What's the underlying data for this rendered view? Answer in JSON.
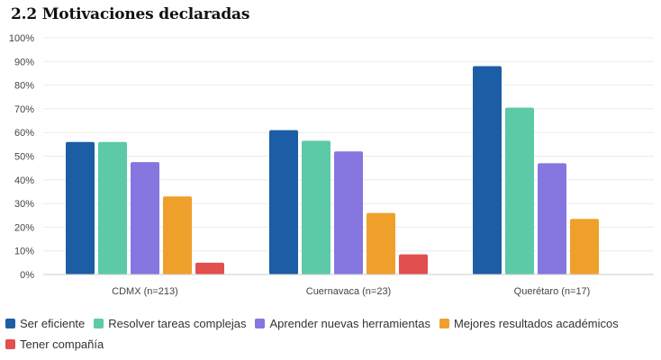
{
  "header": {
    "title": "2.2 Motivaciones declaradas"
  },
  "chart_data": {
    "type": "bar",
    "categories": [
      "CDMX (n=213)",
      "Cuernavaca (n=23)",
      "Querétaro (n=17)"
    ],
    "series": [
      {
        "name": "Ser eficiente",
        "color": "#1c5ea5",
        "values": [
          56,
          61,
          88
        ]
      },
      {
        "name": "Resolver tareas complejas",
        "color": "#5ccaa6",
        "values": [
          56,
          56.5,
          70.5
        ]
      },
      {
        "name": "Aprender nuevas herramientas",
        "color": "#8676df",
        "values": [
          47.5,
          52,
          47
        ]
      },
      {
        "name": "Mejores resultados académicos",
        "color": "#efa02b",
        "values": [
          33,
          26,
          23.5
        ]
      },
      {
        "name": "Tener compañía",
        "color": "#e24f4f",
        "values": [
          5,
          8.5,
          0
        ]
      }
    ],
    "yticks": [
      "0%",
      "10%",
      "20%",
      "30%",
      "40%",
      "50%",
      "60%",
      "70%",
      "80%",
      "90%",
      "100%"
    ],
    "ylim": [
      0,
      100
    ],
    "grid": true,
    "legend_position": "bottom"
  }
}
